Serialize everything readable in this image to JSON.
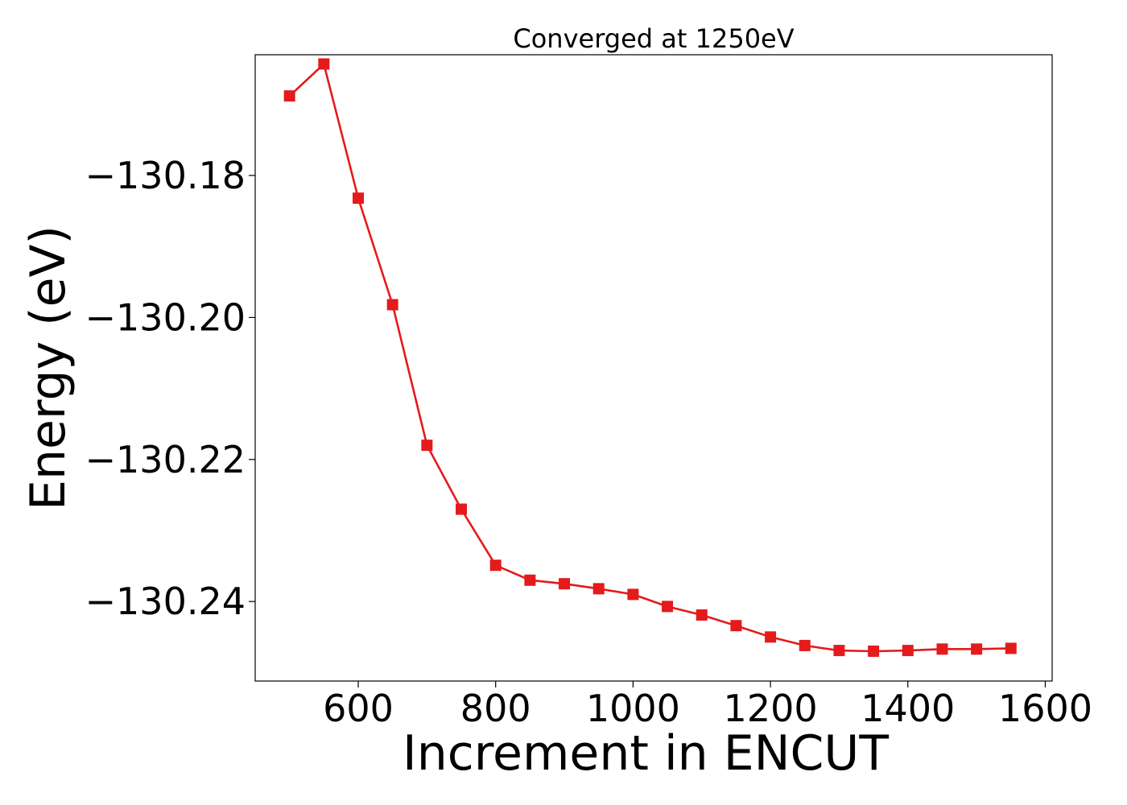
{
  "chart_data": {
    "type": "line",
    "title": "Converged at 1250eV",
    "xlabel": "Increment in ENCUT",
    "ylabel": "Energy (eV)",
    "xlim": [
      450,
      1610
    ],
    "ylim": [
      -130.2512,
      -130.163
    ],
    "x_ticks": [
      600,
      800,
      1000,
      1200,
      1400,
      1600
    ],
    "x_tick_labels": [
      "600",
      "800",
      "1000",
      "1200",
      "1400",
      "1600"
    ],
    "y_ticks": [
      -130.18,
      -130.2,
      -130.22,
      -130.24
    ],
    "y_tick_labels": [
      "−130.18",
      "−130.20",
      "−130.22",
      "−130.24"
    ],
    "grid": false,
    "series": [
      {
        "color": "#e41a1c",
        "marker": "square",
        "x": [
          500,
          550,
          600,
          650,
          700,
          750,
          800,
          850,
          900,
          950,
          1000,
          1050,
          1100,
          1150,
          1200,
          1250,
          1300,
          1350,
          1400,
          1450,
          1500,
          1550
        ],
        "y": [
          -130.1688,
          -130.1643,
          -130.1832,
          -130.1982,
          -130.218,
          -130.227,
          -130.2349,
          -130.237,
          -130.2375,
          -130.2382,
          -130.239,
          -130.2407,
          -130.2419,
          -130.2434,
          -130.245,
          -130.2462,
          -130.2469,
          -130.247,
          -130.2469,
          -130.2467,
          -130.2467,
          -130.2466
        ]
      }
    ]
  }
}
